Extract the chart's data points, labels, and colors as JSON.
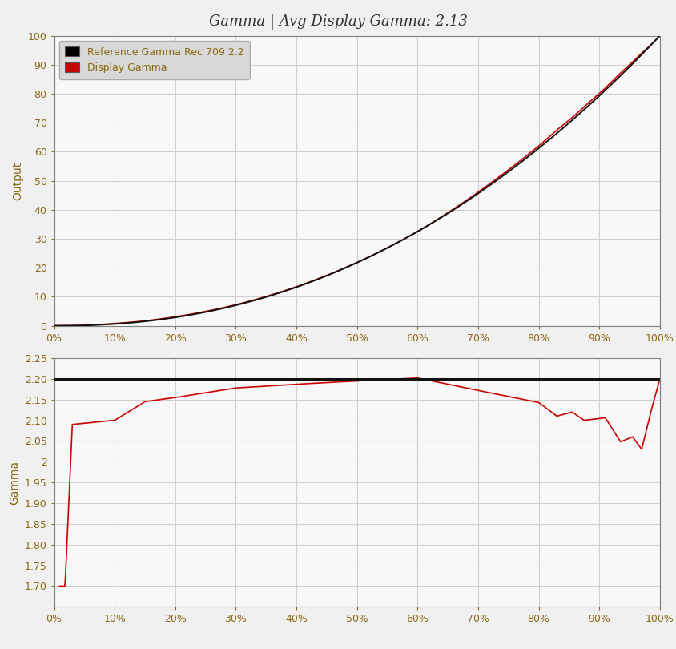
{
  "title": "Gamma | Avg Display Gamma: 2.13",
  "bg_color": "#f0f0f0",
  "plot_bg_color": "#f8f8f8",
  "grid_color": "#d0d0d0",
  "spine_color": "#808080",
  "tick_color": "#8B6914",
  "upper_ylabel": "Output",
  "lower_ylabel": "Gamma",
  "x_ticks": [
    0.0,
    0.1,
    0.2,
    0.3,
    0.4,
    0.5,
    0.6,
    0.7,
    0.8,
    0.9,
    1.0
  ],
  "x_tick_labels": [
    "0%",
    "10%",
    "20%",
    "30%",
    "40%",
    "50%",
    "60%",
    "70%",
    "80%",
    "90%",
    "100%"
  ],
  "upper_ylim": [
    0,
    100
  ],
  "upper_yticks": [
    0,
    10,
    20,
    30,
    40,
    50,
    60,
    70,
    80,
    90,
    100
  ],
  "lower_ylim": [
    1.65,
    2.25
  ],
  "lower_yticks": [
    1.7,
    1.75,
    1.8,
    1.85,
    1.9,
    1.95,
    2.0,
    2.05,
    2.1,
    2.15,
    2.2,
    2.25
  ],
  "ref_gamma": 2.2,
  "ref_line_color": "#111111",
  "display_line_color": "#cc0000",
  "legend_ref_label": "Reference Gamma Rec 709 2.2",
  "legend_display_label": "Display Gamma",
  "legend_bg": "#d8d8d8",
  "title_fontsize": 13,
  "axis_label_fontsize": 10,
  "tick_fontsize": 9,
  "legend_fontsize": 9
}
